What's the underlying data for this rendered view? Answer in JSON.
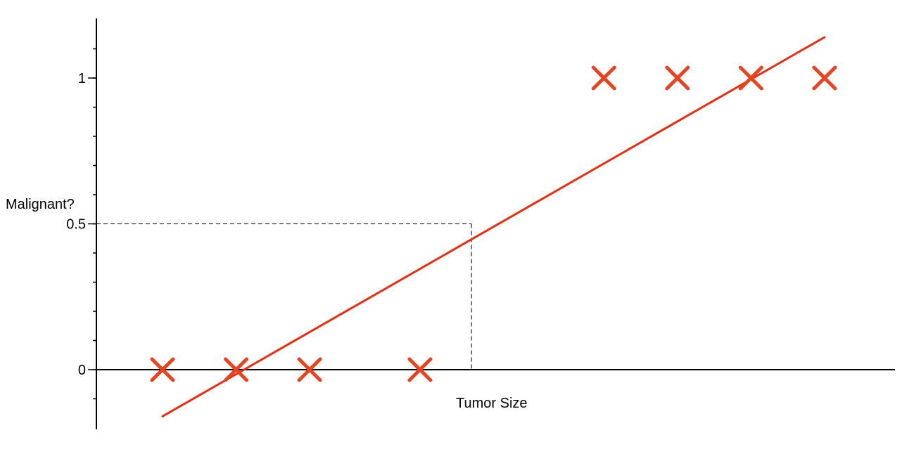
{
  "chart_data": {
    "type": "scatter",
    "xlabel": "Tumor Size",
    "ylabel": "Malignant?",
    "ylim": [
      -0.18,
      1.18
    ],
    "y_ticks": [
      {
        "value": 0,
        "label": "0"
      },
      {
        "value": 0.5,
        "label": "0.5"
      },
      {
        "value": 1,
        "label": "1"
      }
    ],
    "y_minor_tick_step": 0.1,
    "grid": false,
    "legend": "none",
    "marker": "x",
    "colors": {
      "points": "#e8421f",
      "fit_line": "#e62e12",
      "axis": "#000000",
      "guide": "#000000"
    },
    "points": [
      {
        "x": 1.0,
        "y": 0
      },
      {
        "x": 2.0,
        "y": 0
      },
      {
        "x": 3.0,
        "y": 0
      },
      {
        "x": 4.5,
        "y": 0
      },
      {
        "x": 7.0,
        "y": 1
      },
      {
        "x": 8.0,
        "y": 1
      },
      {
        "x": 9.0,
        "y": 1
      },
      {
        "x": 10.0,
        "y": 1
      }
    ],
    "fit_line": {
      "x": [
        1.0,
        10.0
      ],
      "y": [
        -0.16,
        1.14
      ]
    },
    "threshold": {
      "x": 5.2,
      "y": 0.5
    }
  }
}
